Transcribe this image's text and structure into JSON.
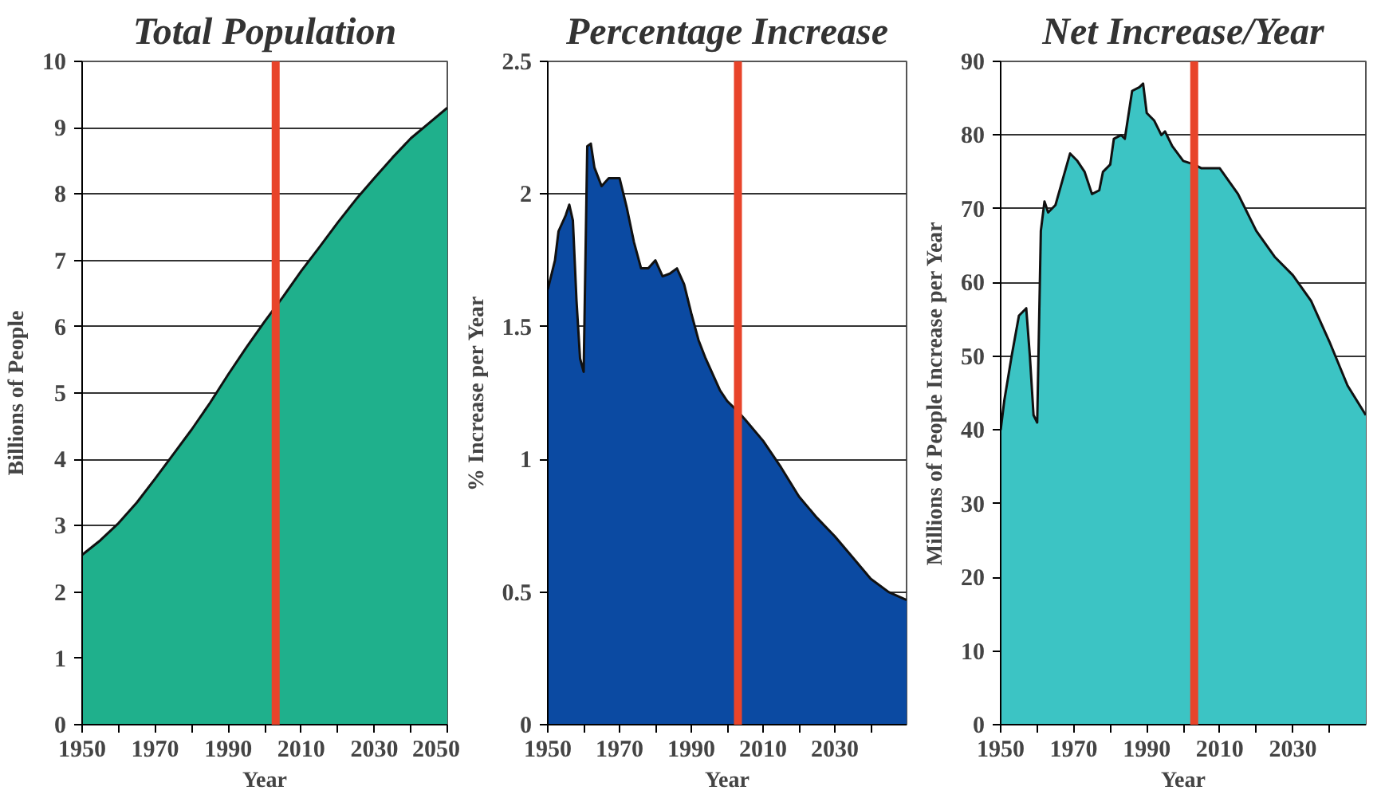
{
  "chart_data": [
    {
      "type": "area",
      "title": "Total Population",
      "xlabel": "Year",
      "ylabel": "Billions of People",
      "x": [
        1950,
        1955,
        1960,
        1965,
        1970,
        1975,
        1980,
        1985,
        1990,
        1995,
        2000,
        2005,
        2010,
        2015,
        2020,
        2025,
        2030,
        2035,
        2040,
        2045,
        2050
      ],
      "series": [
        {
          "color": "#1fb08c",
          "values": [
            2.56,
            2.78,
            3.04,
            3.35,
            3.71,
            4.08,
            4.45,
            4.85,
            5.28,
            5.69,
            6.08,
            6.45,
            6.84,
            7.2,
            7.57,
            7.92,
            8.24,
            8.55,
            8.84,
            9.07,
            9.3
          ]
        }
      ],
      "xlim": [
        1950,
        2050
      ],
      "xticks": [
        1950,
        {
          "value": 1960,
          "label": null
        },
        1970,
        {
          "value": 1980,
          "label": null
        },
        1990,
        {
          "value": 2000,
          "label": null
        },
        2010,
        {
          "value": 2020,
          "label": null
        },
        2030,
        {
          "value": 2040,
          "label": null
        },
        2050
      ],
      "ylim": [
        0,
        10
      ],
      "yticks": [
        0,
        1,
        2,
        3,
        4,
        5,
        6,
        7,
        8,
        9,
        10
      ],
      "grid": "y",
      "ref_lines": [
        {
          "axis": "x",
          "value": 2003,
          "color": "#e8442a"
        }
      ]
    },
    {
      "type": "area",
      "title": "Percentage Increase",
      "xlabel": "Year",
      "ylabel": "% Increase per Year",
      "x": [
        1950,
        1952,
        1953,
        1955,
        1956,
        1957,
        1958,
        1959,
        1960,
        1961,
        1962,
        1963,
        1965,
        1967,
        1970,
        1972,
        1974,
        1976,
        1978,
        1980,
        1982,
        1984,
        1986,
        1988,
        1990,
        1992,
        1994,
        1996,
        1998,
        2000,
        2003,
        2005,
        2010,
        2015,
        2020,
        2025,
        2030,
        2035,
        2040,
        2045,
        2050
      ],
      "series": [
        {
          "color": "#0b4aa2",
          "values": [
            1.64,
            1.75,
            1.86,
            1.92,
            1.96,
            1.9,
            1.6,
            1.38,
            1.33,
            2.18,
            2.19,
            2.1,
            2.03,
            2.06,
            2.06,
            1.95,
            1.82,
            1.72,
            1.72,
            1.75,
            1.69,
            1.7,
            1.72,
            1.66,
            1.55,
            1.45,
            1.38,
            1.32,
            1.26,
            1.22,
            1.18,
            1.15,
            1.07,
            0.97,
            0.86,
            0.78,
            0.71,
            0.63,
            0.55,
            0.5,
            0.47
          ]
        }
      ],
      "xlim": [
        1950,
        2050
      ],
      "xticks": [
        1950,
        {
          "value": 1960,
          "label": null
        },
        1970,
        {
          "value": 1980,
          "label": null
        },
        1990,
        {
          "value": 2000,
          "label": null
        },
        2010,
        {
          "value": 2020,
          "label": null
        },
        2030,
        {
          "value": 2040,
          "label": null
        }
      ],
      "ylim": [
        0,
        2.5
      ],
      "yticks": [
        0,
        0.5,
        1,
        1.5,
        2,
        2.5
      ],
      "grid": "y",
      "ref_lines": [
        {
          "axis": "x",
          "value": 2003,
          "color": "#e8442a"
        }
      ]
    },
    {
      "type": "area",
      "title": "Net Increase/Year",
      "xlabel": "Year",
      "ylabel": "Millions of People Increase per Year",
      "x": [
        1950,
        1951,
        1953,
        1955,
        1957,
        1958,
        1959,
        1960,
        1961,
        1962,
        1963,
        1965,
        1967,
        1969,
        1971,
        1973,
        1975,
        1977,
        1978,
        1980,
        1981,
        1983,
        1984,
        1986,
        1988,
        1989,
        1990,
        1992,
        1994,
        1995,
        1997,
        2000,
        2003,
        2005,
        2010,
        2015,
        2020,
        2025,
        2030,
        2035,
        2040,
        2045,
        2050
      ],
      "series": [
        {
          "color": "#3cc4c4",
          "values": [
            40,
            44,
            50,
            55.5,
            56.5,
            50,
            42,
            41,
            67,
            71,
            69.5,
            70.5,
            74,
            77.5,
            76.5,
            75,
            72,
            72.5,
            75,
            76,
            79.5,
            80,
            79.5,
            86,
            86.5,
            87,
            83,
            82,
            80,
            80.5,
            78.5,
            76.5,
            76,
            75.5,
            75.5,
            72,
            67,
            63.5,
            61,
            57.5,
            52,
            46,
            42
          ]
        }
      ],
      "xlim": [
        1950,
        2050
      ],
      "xticks": [
        1950,
        {
          "value": 1960,
          "label": null
        },
        1970,
        {
          "value": 1980,
          "label": null
        },
        1990,
        {
          "value": 2000,
          "label": null
        },
        2010,
        {
          "value": 2020,
          "label": null
        },
        2030,
        {
          "value": 2040,
          "label": null
        }
      ],
      "ylim": [
        0,
        90
      ],
      "yticks": [
        0,
        10,
        20,
        30,
        40,
        50,
        60,
        70,
        80,
        90
      ],
      "grid": "y",
      "ref_lines": [
        {
          "axis": "x",
          "value": 2003,
          "color": "#e8442a"
        }
      ]
    }
  ]
}
